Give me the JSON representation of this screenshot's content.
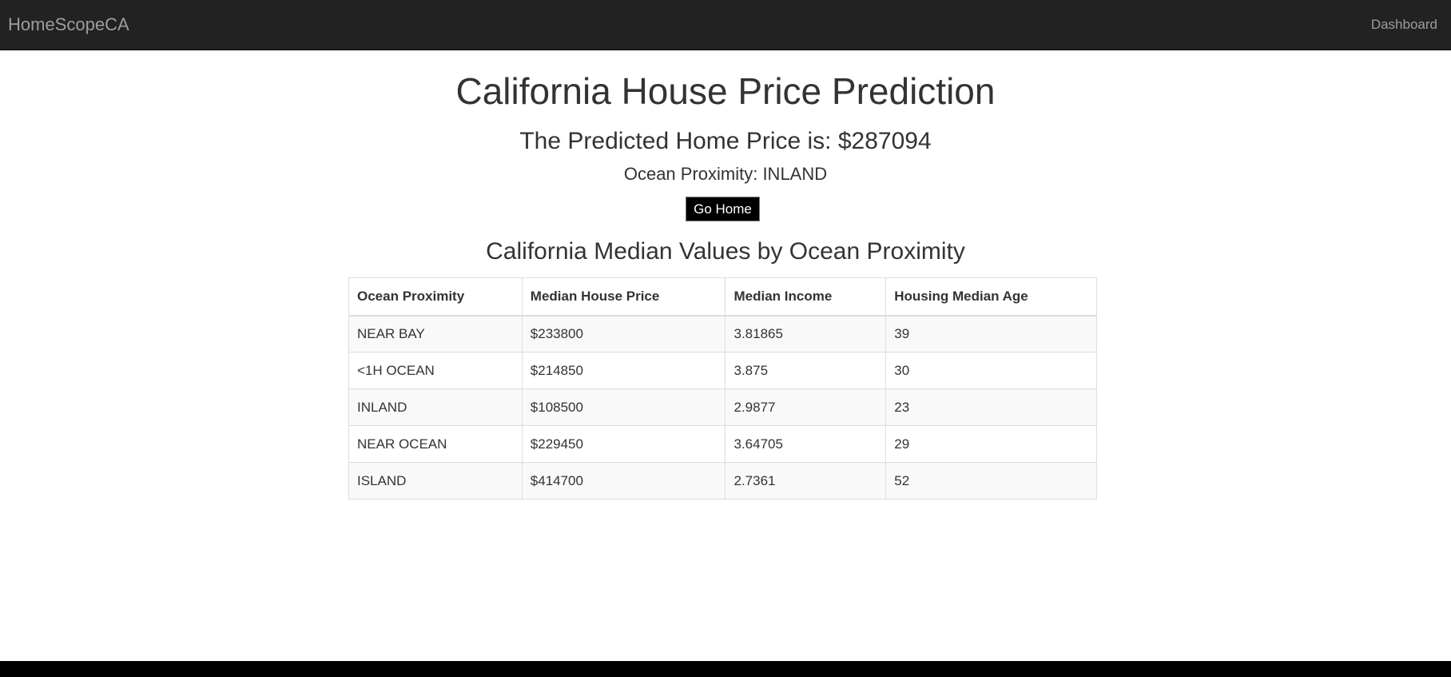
{
  "navbar": {
    "brand": "HomeScopeCA",
    "dashboard_link": "Dashboard"
  },
  "main": {
    "title": "California House Price Prediction",
    "prediction_text": "The Predicted Home Price is: $287094",
    "proximity_text": "Ocean Proximity: INLAND",
    "go_home_label": "Go Home",
    "section_title": "California Median Values by Ocean Proximity"
  },
  "table": {
    "headers": [
      "Ocean Proximity",
      "Median House Price",
      "Median Income",
      "Housing Median Age"
    ],
    "rows": [
      [
        "NEAR BAY",
        "$233800",
        "3.81865",
        "39"
      ],
      [
        "<1H OCEAN",
        "$214850",
        "3.875",
        "30"
      ],
      [
        "INLAND",
        "$108500",
        "2.9877",
        "23"
      ],
      [
        "NEAR OCEAN",
        "$229450",
        "3.64705",
        "29"
      ],
      [
        "ISLAND",
        "$414700",
        "2.7361",
        "52"
      ]
    ]
  },
  "colors": {
    "navbar_bg": "#222222",
    "nav_text": "#9d9d9d",
    "button_bg": "#000000",
    "footer_bg": "#000000"
  }
}
